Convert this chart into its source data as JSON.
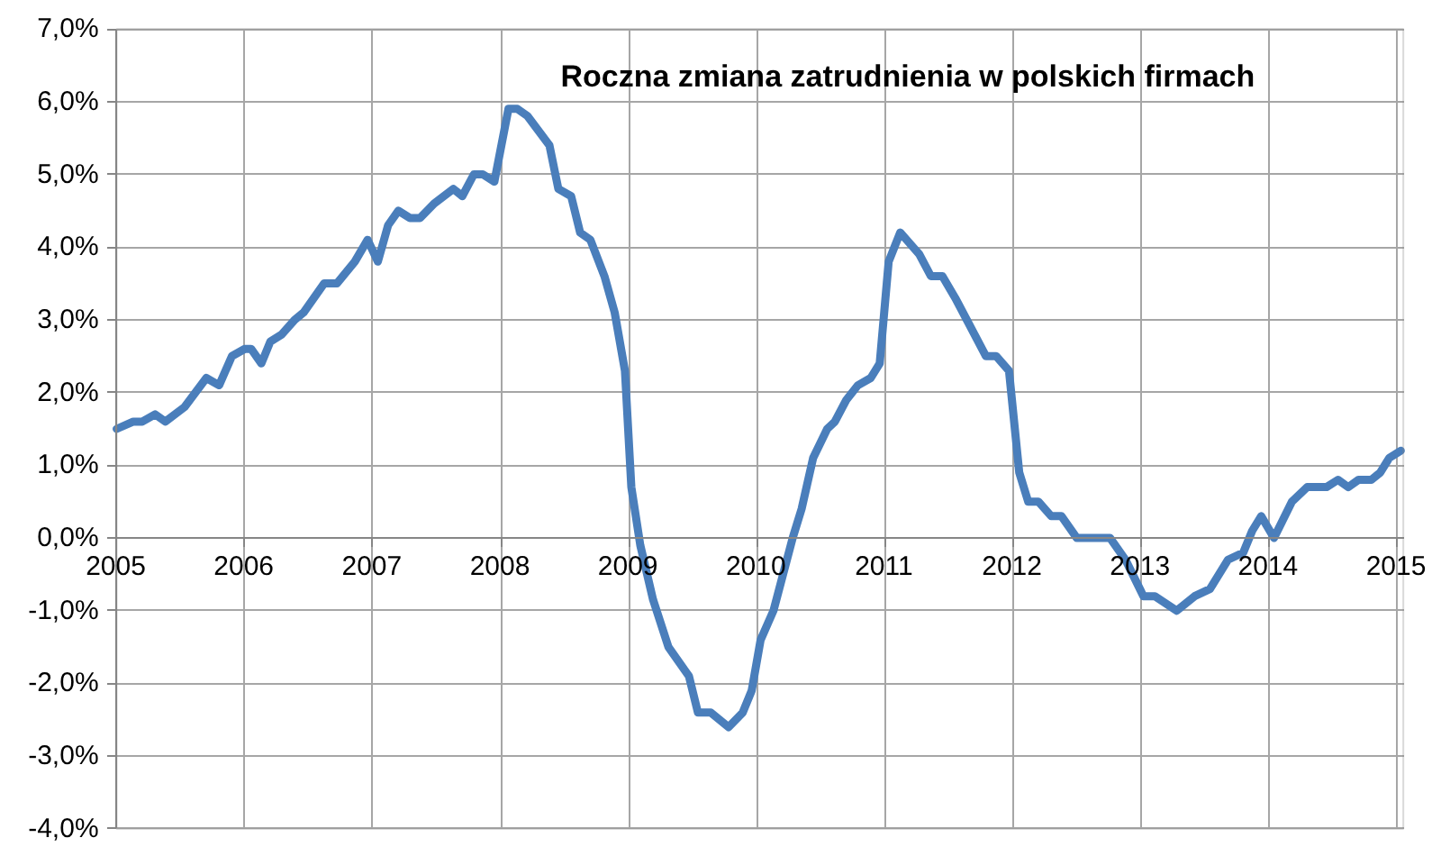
{
  "chart_data": {
    "type": "line",
    "title": "Roczna zmiana zatrudnienia w polskich firmach",
    "series": [
      {
        "color": "#4a7ebb",
        "x": [
          2005.0,
          2005.13,
          2005.2,
          2005.3,
          2005.38,
          2005.53,
          2005.7,
          2005.8,
          2005.9,
          2006.0,
          2006.05,
          2006.13,
          2006.2,
          2006.29,
          2006.39,
          2006.46,
          2006.62,
          2006.72,
          2006.86,
          2006.96,
          2007.04,
          2007.12,
          2007.2,
          2007.29,
          2007.37,
          2007.48,
          2007.63,
          2007.7,
          2007.79,
          2007.86,
          2007.95,
          2008.06,
          2008.13,
          2008.21,
          2008.38,
          2008.45,
          2008.55,
          2008.62,
          2008.7,
          2008.81,
          2008.89,
          2008.97,
          2009.02,
          2009.09,
          2009.19,
          2009.31,
          2009.47,
          2009.54,
          2009.64,
          2009.78,
          2009.89,
          2009.96,
          2010.03,
          2010.13,
          2010.28,
          2010.35,
          2010.44,
          2010.55,
          2010.61,
          2010.7,
          2010.79,
          2010.89,
          2010.96,
          2011.03,
          2011.12,
          2011.27,
          2011.36,
          2011.45,
          2011.55,
          2011.64,
          2011.79,
          2011.87,
          2011.97,
          2012.05,
          2012.12,
          2012.2,
          2012.3,
          2012.38,
          2012.5,
          2012.59,
          2012.76,
          2012.88,
          2013.02,
          2013.11,
          2013.28,
          2013.42,
          2013.54,
          2013.68,
          2013.8,
          2013.87,
          2013.94,
          2014.04,
          2014.18,
          2014.3,
          2014.45,
          2014.54,
          2014.62,
          2014.7,
          2014.8,
          2014.87,
          2014.94,
          2015.03
        ],
        "values": [
          1.5,
          1.6,
          1.6,
          1.7,
          1.6,
          1.8,
          2.2,
          2.1,
          2.5,
          2.6,
          2.6,
          2.4,
          2.7,
          2.8,
          3.0,
          3.1,
          3.5,
          3.5,
          3.8,
          4.1,
          3.8,
          4.3,
          4.5,
          4.4,
          4.4,
          4.6,
          4.8,
          4.7,
          5.0,
          5.0,
          4.9,
          5.9,
          5.9,
          5.8,
          5.4,
          4.8,
          4.7,
          4.2,
          4.1,
          3.6,
          3.1,
          2.3,
          0.7,
          -0.1,
          -0.85,
          -1.5,
          -1.9,
          -2.4,
          -2.4,
          -2.6,
          -2.4,
          -2.1,
          -1.4,
          -1.0,
          0.0,
          0.4,
          1.1,
          1.5,
          1.6,
          1.9,
          2.1,
          2.2,
          2.4,
          3.8,
          4.2,
          3.9,
          3.6,
          3.6,
          3.3,
          3.0,
          2.5,
          2.5,
          2.3,
          0.9,
          0.5,
          0.5,
          0.3,
          0.3,
          0.0,
          0.0,
          0.0,
          -0.3,
          -0.8,
          -0.8,
          -1.0,
          -0.8,
          -0.7,
          -0.3,
          -0.2,
          0.1,
          0.3,
          0.0,
          0.5,
          0.7,
          0.7,
          0.8,
          0.7,
          0.8,
          0.8,
          0.9,
          1.1,
          1.2
        ]
      }
    ],
    "xlim": [
      2005,
      2015.05
    ],
    "xticks": [
      2005,
      2006,
      2007,
      2008,
      2009,
      2010,
      2011,
      2012,
      2013,
      2014,
      2015
    ],
    "ylim": [
      -4,
      7
    ],
    "yticks": [
      {
        "value": -4,
        "label": "-4,0%"
      },
      {
        "value": -3,
        "label": "-3,0%"
      },
      {
        "value": -2,
        "label": "-2,0%"
      },
      {
        "value": -1,
        "label": "-1,0%"
      },
      {
        "value": 0,
        "label": "0,0%"
      },
      {
        "value": 1,
        "label": "1,0%"
      },
      {
        "value": 2,
        "label": "2,0%"
      },
      {
        "value": 3,
        "label": "3,0%"
      },
      {
        "value": 4,
        "label": "4,0%"
      },
      {
        "value": 5,
        "label": "5,0%"
      },
      {
        "value": 6,
        "label": "6,0%"
      },
      {
        "value": 7,
        "label": "7,0%"
      }
    ],
    "grid": true,
    "marker": "none",
    "line_style": "solid"
  }
}
